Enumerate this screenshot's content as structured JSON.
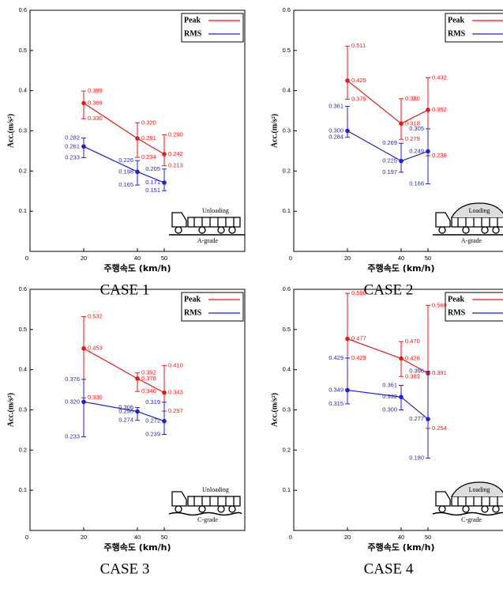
{
  "chart_data": [
    {
      "type": "line",
      "caption": "CASE  1",
      "xlabel": "주행속도 (km/h)",
      "ylabel": "Acc.(m/s²)",
      "truck_label": "Unloading",
      "road_label": "A-grade",
      "loaded": false,
      "x": [
        20,
        40,
        50
      ],
      "xlim": [
        0,
        80
      ],
      "xticks": [
        0,
        20,
        40,
        50
      ],
      "ylim": [
        0,
        0.6
      ],
      "yticks": [
        0.1,
        0.2,
        0.3,
        0.4,
        0.5,
        0.6
      ],
      "legend": "upper right",
      "series": [
        {
          "name": "Peak",
          "color": "#e41a1c",
          "values": [
            0.369,
            0.281,
            0.242
          ],
          "max": [
            0.399,
            0.32,
            0.29
          ],
          "min": [
            0.33,
            0.234,
            0.213
          ],
          "value_labels": [
            "0.369",
            "0.281",
            "0.242"
          ],
          "max_labels": [
            "0.399",
            "0.320",
            "0.290"
          ],
          "min_labels": [
            "0.330",
            "0.234",
            "0.213"
          ]
        },
        {
          "name": "RMS",
          "color": "#1f1fd6",
          "values": [
            0.261,
            0.198,
            0.171
          ],
          "max": [
            0.282,
            0.226,
            0.205
          ],
          "min": [
            0.233,
            0.165,
            0.151
          ],
          "value_labels": [
            "0.261",
            "0.198",
            "0.171"
          ],
          "max_labels": [
            "0.282",
            "0.226",
            "0.205"
          ],
          "min_labels": [
            "0.233",
            "0.165",
            "0.151"
          ]
        }
      ]
    },
    {
      "type": "line",
      "caption": "CASE  2",
      "xlabel": "주행속도 (km/h)",
      "ylabel": "Acc.(m/s²)",
      "truck_label": "Loading",
      "road_label": "A-grade",
      "loaded": true,
      "x": [
        20,
        40,
        50
      ],
      "xlim": [
        0,
        80
      ],
      "xticks": [
        0,
        20,
        40,
        50
      ],
      "ylim": [
        0,
        0.6
      ],
      "yticks": [
        0.1,
        0.2,
        0.3,
        0.4,
        0.5,
        0.6
      ],
      "legend": "upper right",
      "series": [
        {
          "name": "Peak",
          "color": "#e41a1c",
          "values": [
            0.425,
            0.318,
            0.352
          ],
          "max": [
            0.511,
            0.38,
            0.432
          ],
          "min": [
            0.379,
            0.279,
            0.238
          ],
          "value_labels": [
            "0.425",
            "0.318",
            "0.352"
          ],
          "max_labels": [
            "0.511",
            "0.380",
            "0.432"
          ],
          "min_labels": [
            "0.379",
            "0.279",
            "0.238"
          ]
        },
        {
          "name": "RMS",
          "color": "#1f1fd6",
          "values": [
            0.3,
            0.225,
            0.249
          ],
          "max": [
            0.361,
            0.269,
            0.305
          ],
          "min": [
            0.284,
            0.197,
            0.168
          ],
          "value_labels": [
            "0.300",
            "0.225",
            "0.249"
          ],
          "max_labels": [
            "0.361",
            "0.269",
            "0.305"
          ],
          "min_labels": [
            "0.284",
            "0.197",
            "0.168"
          ]
        }
      ]
    },
    {
      "type": "line",
      "caption": "CASE  3",
      "xlabel": "주행속도 (km/h)",
      "ylabel": "Acc.(m/s²)",
      "truck_label": "Unloading",
      "road_label": "C-grade",
      "loaded": false,
      "x": [
        20,
        40,
        50
      ],
      "xlim": [
        0,
        80
      ],
      "xticks": [
        0,
        20,
        40,
        50
      ],
      "ylim": [
        0,
        0.6
      ],
      "yticks": [
        0.1,
        0.2,
        0.3,
        0.4,
        0.5,
        0.6
      ],
      "legend": "upper right",
      "series": [
        {
          "name": "Peak",
          "color": "#e41a1c",
          "values": [
            0.453,
            0.378,
            0.343
          ],
          "max": [
            0.532,
            0.392,
            0.41
          ],
          "min": [
            0.33,
            0.346,
            0.297
          ],
          "value_labels": [
            "0.453",
            "0.378",
            "0.343"
          ],
          "max_labels": [
            "0.532",
            "0.392",
            "0.410"
          ],
          "min_labels": [
            "0.330",
            "0.346",
            "0.297"
          ]
        },
        {
          "name": "RMS",
          "color": "#1f1fd6",
          "values": [
            0.32,
            0.296,
            0.272
          ],
          "max": [
            0.376,
            0.306,
            0.319
          ],
          "min": [
            0.233,
            0.274,
            0.239
          ],
          "value_labels": [
            "0.320",
            "0.296",
            "0.272"
          ],
          "max_labels": [
            "0.376",
            "0.306",
            "0.319"
          ],
          "min_labels": [
            "0.233",
            "0.274",
            "0.239"
          ]
        }
      ]
    },
    {
      "type": "line",
      "caption": "CASE  4",
      "xlabel": "주행속도 (km/h)",
      "ylabel": "Acc.(m/s²)",
      "truck_label": "Loading",
      "road_label": "C-grade",
      "loaded": true,
      "x": [
        20,
        40,
        50
      ],
      "xlim": [
        0,
        80
      ],
      "xticks": [
        0,
        20,
        40,
        50
      ],
      "ylim": [
        0,
        0.6
      ],
      "yticks": [
        0.1,
        0.2,
        0.3,
        0.4,
        0.5,
        0.6
      ],
      "legend": "upper right",
      "series": [
        {
          "name": "Peak",
          "color": "#e41a1c",
          "values": [
            0.477,
            0.428,
            0.391
          ],
          "max": [
            0.59,
            0.47,
            0.56
          ],
          "min": [
            0.429,
            0.383,
            0.254
          ],
          "value_labels": [
            "0.477",
            "0.428",
            "0.391"
          ],
          "max_labels": [
            "0.590",
            "0.470",
            "0.560"
          ],
          "min_labels": [
            "0.429",
            "0.383",
            "0.254"
          ]
        },
        {
          "name": "RMS",
          "color": "#1f1fd6",
          "values": [
            0.349,
            0.332,
            0.277
          ],
          "max": [
            0.429,
            0.361,
            0.396
          ],
          "min": [
            0.315,
            0.3,
            0.18
          ],
          "value_labels": [
            "0.349",
            "0.332",
            "0.277"
          ],
          "max_labels": [
            "0.429",
            "0.361",
            "0.396"
          ],
          "min_labels": [
            "0.315",
            "0.300",
            "0.180"
          ]
        }
      ]
    }
  ]
}
